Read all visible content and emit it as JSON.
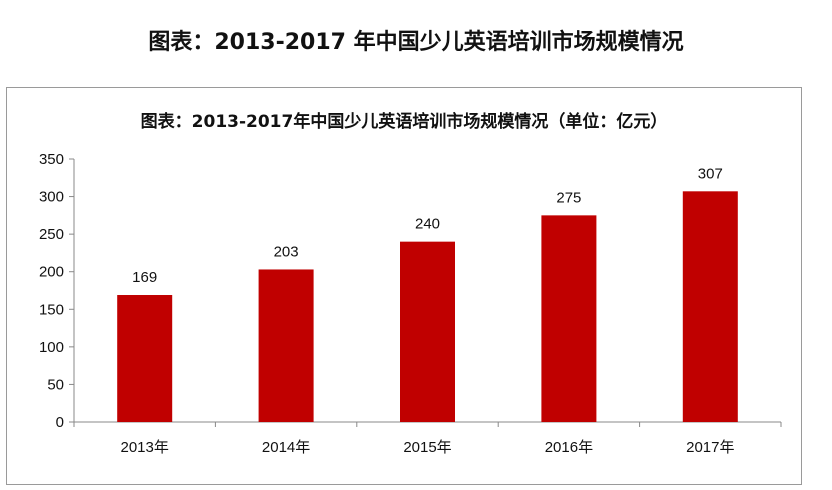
{
  "page_title": "图表：2013-2017 年中国少儿英语培训市场规模情况",
  "chart_data": {
    "type": "bar",
    "title": "图表：2013-2017年中国少儿英语培训市场规模情况（单位：亿元）",
    "categories": [
      "2013年",
      "2014年",
      "2015年",
      "2016年",
      "2017年"
    ],
    "values": [
      169,
      203,
      240,
      275,
      307
    ],
    "data_labels": [
      "169",
      "203",
      "240",
      "275",
      "307"
    ],
    "ylim": [
      0,
      350
    ],
    "yticks": [
      0,
      50,
      100,
      150,
      200,
      250,
      300,
      350
    ],
    "grid": false,
    "legend": "none",
    "bar_color": "#C00000",
    "axis_color": "#888888"
  }
}
